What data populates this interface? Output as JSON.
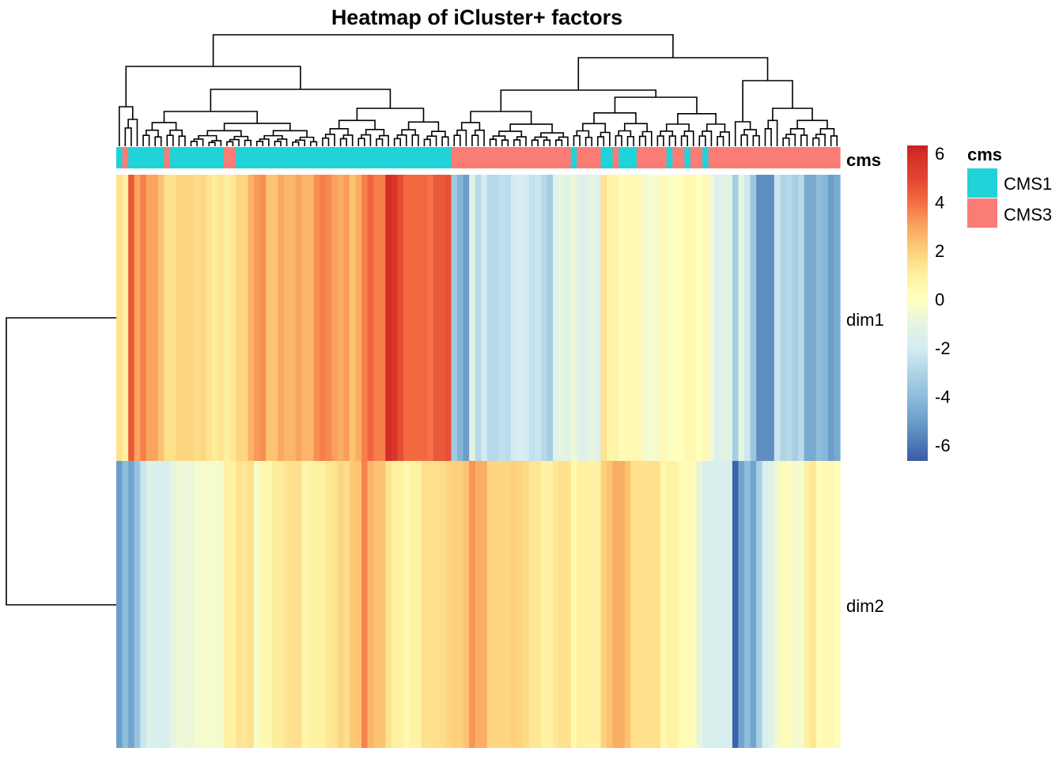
{
  "chart_data": {
    "type": "heatmap",
    "title": "Heatmap of iCluster+ factors",
    "rows": [
      "dim1",
      "dim2"
    ],
    "annotation": {
      "name": "cms",
      "levels": [
        "CMS1",
        "CMS3"
      ],
      "colors": {
        "CMS1": "#1fd3d9",
        "CMS3": "#fa7d75"
      },
      "values": [
        "CMS1",
        "CMS3",
        "CMS1",
        "CMS1",
        "CMS1",
        "CMS1",
        "CMS1",
        "CMS1",
        "CMS3",
        "CMS1",
        "CMS1",
        "CMS1",
        "CMS1",
        "CMS1",
        "CMS1",
        "CMS1",
        "CMS1",
        "CMS1",
        "CMS3",
        "CMS3",
        "CMS1",
        "CMS1",
        "CMS1",
        "CMS1",
        "CMS1",
        "CMS1",
        "CMS1",
        "CMS1",
        "CMS1",
        "CMS1",
        "CMS1",
        "CMS1",
        "CMS1",
        "CMS1",
        "CMS1",
        "CMS1",
        "CMS1",
        "CMS1",
        "CMS1",
        "CMS1",
        "CMS1",
        "CMS1",
        "CMS1",
        "CMS1",
        "CMS1",
        "CMS1",
        "CMS1",
        "CMS1",
        "CMS1",
        "CMS1",
        "CMS1",
        "CMS1",
        "CMS1",
        "CMS1",
        "CMS1",
        "CMS1",
        "CMS3",
        "CMS3",
        "CMS3",
        "CMS3",
        "CMS3",
        "CMS3",
        "CMS3",
        "CMS3",
        "CMS3",
        "CMS3",
        "CMS3",
        "CMS3",
        "CMS3",
        "CMS3",
        "CMS3",
        "CMS3",
        "CMS3",
        "CMS3",
        "CMS3",
        "CMS3",
        "CMS1",
        "CMS3",
        "CMS3",
        "CMS3",
        "CMS3",
        "CMS1",
        "CMS1",
        "CMS3",
        "CMS1",
        "CMS1",
        "CMS1",
        "CMS3",
        "CMS3",
        "CMS3",
        "CMS3",
        "CMS3",
        "CMS1",
        "CMS3",
        "CMS3",
        "CMS1",
        "CMS3",
        "CMS3",
        "CMS1",
        "CMS3",
        "CMS3",
        "CMS3",
        "CMS3",
        "CMS3",
        "CMS3",
        "CMS3",
        "CMS3",
        "CMS3",
        "CMS3",
        "CMS3",
        "CMS3",
        "CMS3",
        "CMS3",
        "CMS3",
        "CMS3",
        "CMS3",
        "CMS3",
        "CMS3",
        "CMS3",
        "CMS3",
        "CMS3"
      ]
    },
    "values": {
      "dim1": [
        1.5,
        1.0,
        4.5,
        3.0,
        3.7,
        3.0,
        3.0,
        2.3,
        1.5,
        1.5,
        1.8,
        1.8,
        1.8,
        1.6,
        1.8,
        1.4,
        1.1,
        1.4,
        1.0,
        1.3,
        1.8,
        1.8,
        2.7,
        3.2,
        3.4,
        2.3,
        2.3,
        2.9,
        2.6,
        2.6,
        3.0,
        2.6,
        2.6,
        3.4,
        3.7,
        3.5,
        3.1,
        2.8,
        3.1,
        2.3,
        2.8,
        3.7,
        4.2,
        3.7,
        3.7,
        6.0,
        5.6,
        4.8,
        4.1,
        4.1,
        4.1,
        4.1,
        3.9,
        4.5,
        4.5,
        4.7,
        -3.5,
        -4.3,
        -5.0,
        -1.2,
        -2.8,
        -2.0,
        -2.8,
        -2.8,
        -2.5,
        -2.7,
        -2.0,
        -1.8,
        -2.0,
        -2.5,
        -2.3,
        -2.8,
        -3.3,
        -1.3,
        -1.0,
        -1.3,
        -0.7,
        -1.4,
        -1.5,
        -1.0,
        -1.4,
        1.4,
        0.8,
        0.8,
        0.2,
        0.4,
        0.5,
        0.4,
        -0.6,
        -0.4,
        -0.4,
        0.4,
        -0.2,
        0.0,
        0.0,
        0.5,
        0.5,
        0.0,
        0.4,
        -0.6,
        -1.6,
        -1.2,
        -1.2,
        -3.3,
        -1.0,
        -2.2,
        -3.6,
        -5.4,
        -5.4,
        -5.4,
        -2.3,
        -3.0,
        -2.8,
        -3.3,
        -2.8,
        -4.6,
        -4.6,
        -4.0,
        -4.2,
        -5.0,
        -4.6
      ],
      "dim2": [
        -5.0,
        -4.0,
        -4.8,
        -3.7,
        -2.3,
        -1.5,
        -1.7,
        -1.7,
        -1.7,
        -1.0,
        -0.6,
        -0.8,
        -0.8,
        -0.5,
        -0.4,
        -0.4,
        -0.4,
        -0.4,
        1.0,
        0.9,
        1.4,
        1.3,
        1.5,
        -0.3,
        0.5,
        0.5,
        1.1,
        1.1,
        1.4,
        1.5,
        1.5,
        0.6,
        0.9,
        0.9,
        0.9,
        1.3,
        1.4,
        1.8,
        1.6,
        2.2,
        2.3,
        3.6,
        2.6,
        2.3,
        2.3,
        1.4,
        1.0,
        0.9,
        0.5,
        0.9,
        0.9,
        1.5,
        1.5,
        1.5,
        1.6,
        1.8,
        2.0,
        2.0,
        2.3,
        3.3,
        2.8,
        2.8,
        1.8,
        1.8,
        1.8,
        1.8,
        2.0,
        1.9,
        1.7,
        1.3,
        1.3,
        0.9,
        0.9,
        1.3,
        1.5,
        1.5,
        0.5,
        1.0,
        0.9,
        0.9,
        0.9,
        2.0,
        2.3,
        2.8,
        2.8,
        2.3,
        1.5,
        1.5,
        1.5,
        1.5,
        1.5,
        0.5,
        0.9,
        0.9,
        0.3,
        0.3,
        0.3,
        -1.0,
        -1.7,
        -1.7,
        -1.7,
        -1.7,
        -1.7,
        -6.5,
        -4.8,
        -4.0,
        -4.8,
        -3.2,
        -1.7,
        -1.3,
        -0.6,
        0.2,
        0.2,
        -0.5,
        -0.4,
        1.0,
        1.3,
        0.2,
        0.5,
        0.5,
        0.2
      ]
    },
    "color_scale": {
      "ticks": [
        "6",
        "4",
        "2",
        "0",
        "-2",
        "-4",
        "-6"
      ],
      "range": [
        -6.65,
        6.33
      ],
      "palette": "RdYlBu (reversed)"
    },
    "row_dendrogram": true,
    "column_dendrogram": true
  }
}
